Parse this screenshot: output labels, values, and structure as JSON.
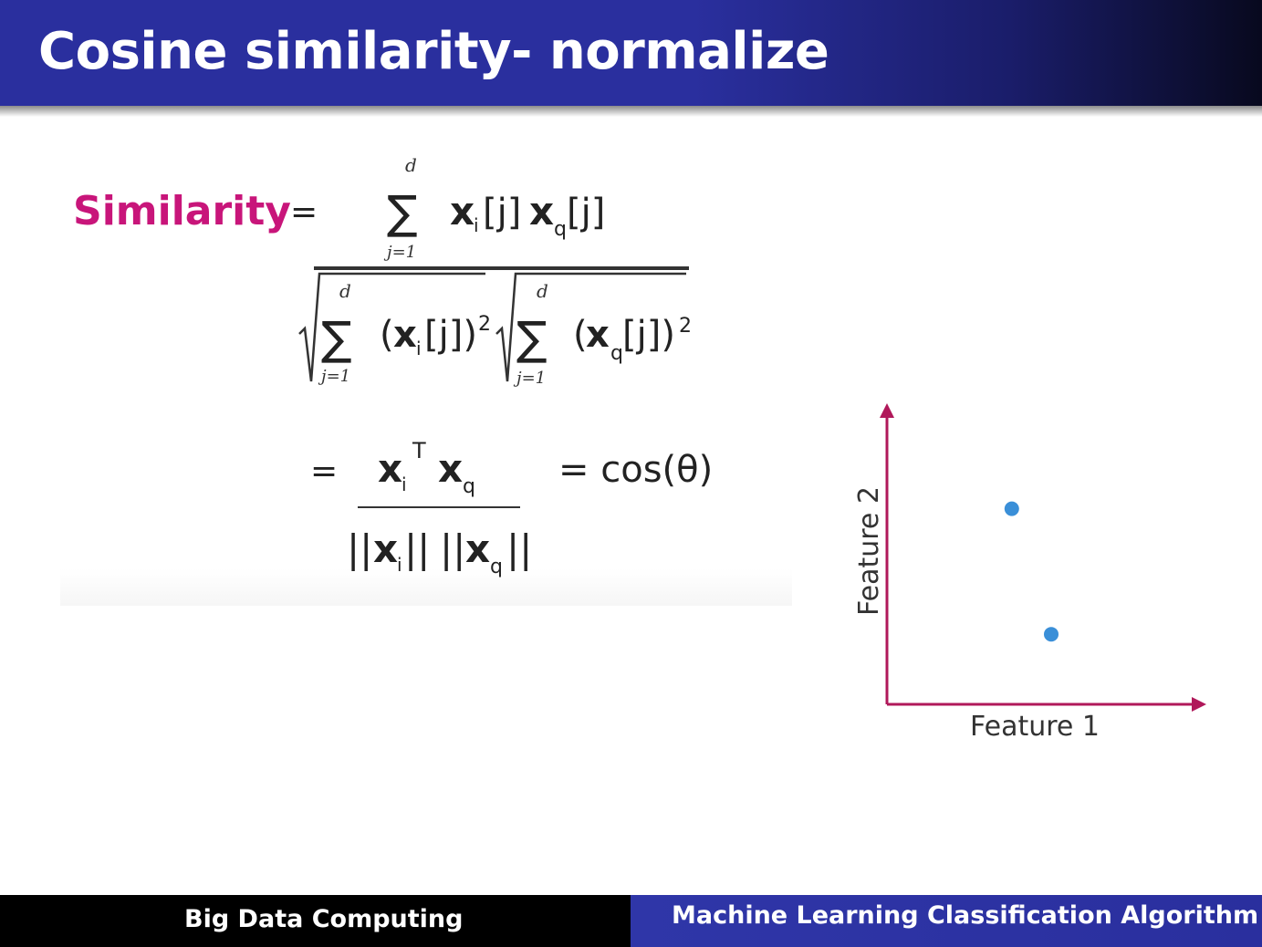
{
  "slide": {
    "title": "Cosine similarity- normalize"
  },
  "formula": {
    "lhs_label": "Similarity",
    "equals": "=",
    "sum_upper": "d",
    "sum_lower": "j=1",
    "vec_i": "x",
    "vec_q": "x",
    "sub_i": "i",
    "sub_q": "q",
    "index": "[j]",
    "paren_open": "(",
    "index_close": "[j])",
    "square": "2",
    "transpose": "T",
    "norm_bars": "||",
    "cos_text": "= cos(θ)"
  },
  "plot": {
    "xlabel": "Feature 1",
    "ylabel": "Feature 2",
    "points": [
      {
        "x": 0.38,
        "y": 0.67
      },
      {
        "x": 0.5,
        "y": 0.24
      }
    ],
    "axis_color": "#b0185a",
    "point_color": "#3a8fd8"
  },
  "footer": {
    "left": "Big Data Computing",
    "right": "Machine Learning Classification Algorithm"
  },
  "colors": {
    "header": "#2a2f9e",
    "similarity_label": "#c8157a"
  }
}
